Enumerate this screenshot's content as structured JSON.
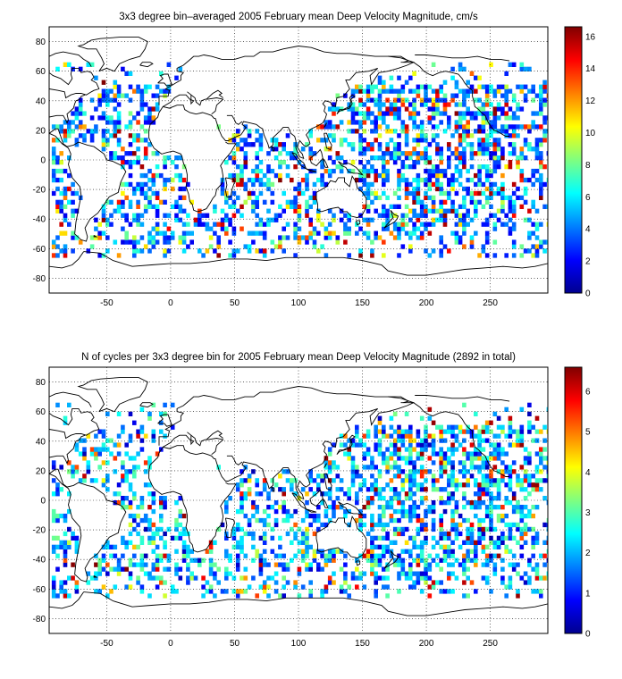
{
  "chart_data": [
    {
      "type": "heatmap",
      "title": "3x3 degree bin–averaged 2005 February mean Deep Velocity Magnitude, cm/s",
      "xlabel": "",
      "ylabel": "",
      "xlim": [
        -95,
        295
      ],
      "ylim": [
        -90,
        90
      ],
      "x_ticks": [
        "-50",
        "0",
        "50",
        "100",
        "150",
        "200",
        "250"
      ],
      "y_ticks": [
        "80",
        "60",
        "40",
        "20",
        "0",
        "-20",
        "-40",
        "-60",
        "-80"
      ],
      "grid": true,
      "colorbar": {
        "range": [
          0,
          16.6
        ],
        "ticks": [
          "0",
          "2",
          "4",
          "6",
          "8",
          "10",
          "12",
          "14",
          "16"
        ]
      },
      "bin_size_deg": 3,
      "seed": 7
    },
    {
      "type": "heatmap",
      "title": "N of cycles per 3x3 degree bin for 2005 February mean Deep Velocity Magnitude (2892 in total)",
      "xlabel": "",
      "ylabel": "",
      "xlim": [
        -95,
        295
      ],
      "ylim": [
        -90,
        90
      ],
      "x_ticks": [
        "-50",
        "0",
        "50",
        "100",
        "150",
        "200",
        "250"
      ],
      "y_ticks": [
        "80",
        "60",
        "40",
        "20",
        "0",
        "-20",
        "-40",
        "-60",
        "-80"
      ],
      "grid": true,
      "colorbar": {
        "range": [
          0,
          6.6
        ],
        "ticks": [
          "0",
          "1",
          "2",
          "3",
          "4",
          "5",
          "6"
        ]
      },
      "bin_size_deg": 3,
      "seed": 11
    }
  ],
  "colors": {
    "axis": "#000000",
    "grid": "#000000",
    "background": "#ffffff"
  }
}
